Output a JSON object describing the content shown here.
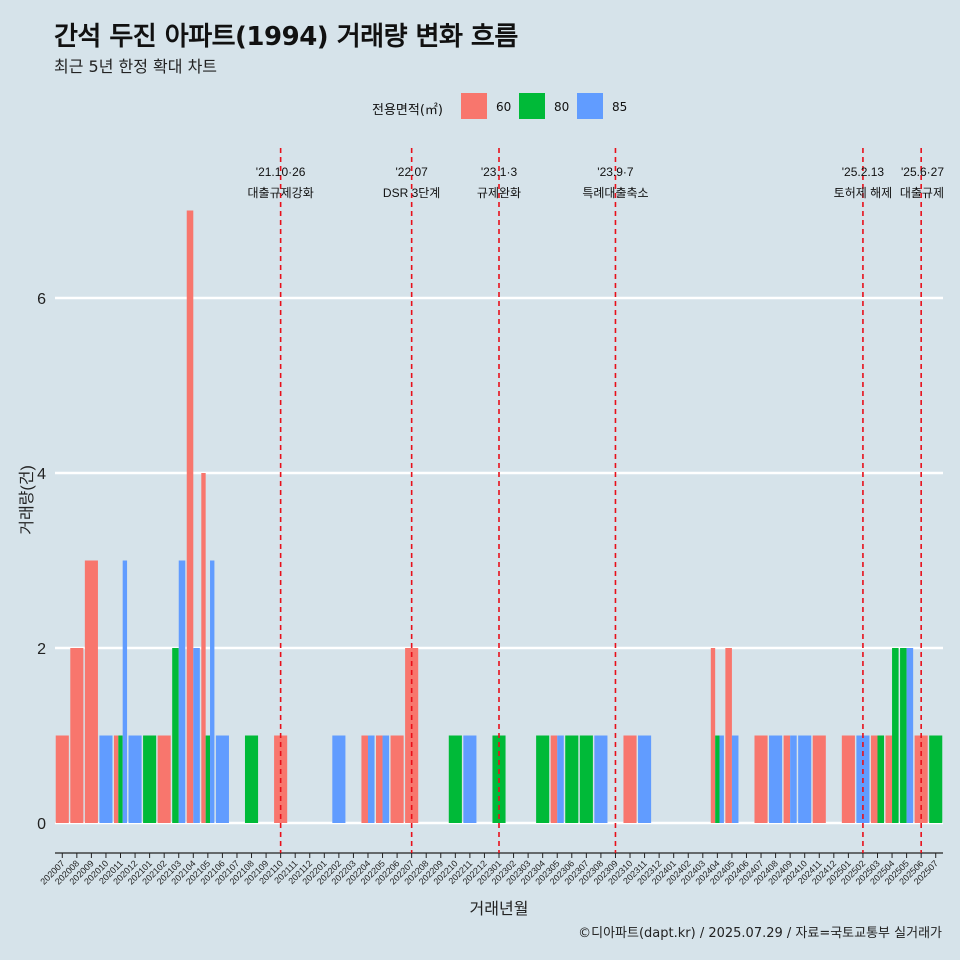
{
  "title": "간석 두진 아파트(1994) 거래량 변화 흐름",
  "subtitle": "최근 5년 한정 확대 차트",
  "caption": "©디아파트(dapt.kr) / 2025.07.29 / 자료=국토교통부 실거래가",
  "legend": {
    "title": "전용면적(㎡)",
    "items": [
      {
        "label": "60",
        "color": "#f8766d"
      },
      {
        "label": "80",
        "color": "#00ba38"
      },
      {
        "label": "85",
        "color": "#619cff"
      }
    ]
  },
  "chart_data": {
    "type": "bar",
    "title": "간석 두진 아파트(1994) 거래량 변화 흐름",
    "xlabel": "거래년월",
    "ylabel": "거래량(건)",
    "ylim": [
      0,
      7
    ],
    "yticks": [
      0,
      2,
      4,
      6
    ],
    "grid": true,
    "legend_position": "top",
    "categories": [
      "202007",
      "202008",
      "202009",
      "202010",
      "202011",
      "202012",
      "202101",
      "202102",
      "202103",
      "202104",
      "202105",
      "202106",
      "202107",
      "202108",
      "202109",
      "202110",
      "202111",
      "202112",
      "202201",
      "202202",
      "202203",
      "202204",
      "202205",
      "202206",
      "202207",
      "202208",
      "202209",
      "202210",
      "202211",
      "202212",
      "202301",
      "202302",
      "202303",
      "202304",
      "202305",
      "202306",
      "202307",
      "202308",
      "202309",
      "202310",
      "202311",
      "202312",
      "202401",
      "202402",
      "202403",
      "202404",
      "202405",
      "202406",
      "202407",
      "202408",
      "202409",
      "202410",
      "202411",
      "202412",
      "202501",
      "202502",
      "202503",
      "202504",
      "202505",
      "202506",
      "202507"
    ],
    "series": [
      {
        "name": "60",
        "color": "#f8766d",
        "values": [
          1,
          2,
          3,
          0,
          1,
          0,
          0,
          1,
          0,
          7,
          4,
          0,
          0,
          0,
          0,
          1,
          0,
          0,
          0,
          0,
          0,
          1,
          1,
          1,
          2,
          0,
          0,
          0,
          0,
          0,
          0,
          0,
          0,
          0,
          1,
          0,
          0,
          0,
          0,
          1,
          0,
          0,
          0,
          0,
          0,
          2,
          2,
          0,
          1,
          0,
          1,
          0,
          1,
          0,
          1,
          0,
          1,
          1,
          0,
          1,
          0
        ]
      },
      {
        "name": "80",
        "color": "#00ba38",
        "values": [
          0,
          0,
          0,
          0,
          1,
          0,
          1,
          0,
          2,
          0,
          1,
          0,
          0,
          1,
          0,
          0,
          0,
          0,
          0,
          0,
          0,
          0,
          0,
          0,
          0,
          0,
          0,
          1,
          0,
          0,
          1,
          0,
          0,
          1,
          0,
          1,
          1,
          0,
          0,
          0,
          0,
          0,
          0,
          0,
          0,
          1,
          0,
          0,
          0,
          0,
          0,
          0,
          0,
          0,
          0,
          0,
          1,
          2,
          2,
          0,
          1
        ]
      },
      {
        "name": "85",
        "color": "#619cff",
        "values": [
          0,
          0,
          0,
          1,
          3,
          1,
          0,
          0,
          3,
          2,
          3,
          1,
          0,
          0,
          0,
          0,
          0,
          0,
          0,
          1,
          0,
          1,
          1,
          0,
          0,
          0,
          0,
          0,
          1,
          0,
          0,
          0,
          0,
          0,
          1,
          0,
          0,
          1,
          0,
          0,
          1,
          0,
          0,
          0,
          0,
          1,
          1,
          0,
          0,
          1,
          1,
          1,
          0,
          0,
          0,
          1,
          0,
          0,
          2,
          0,
          0
        ]
      }
    ],
    "annotations": [
      {
        "x": "202110",
        "date": "'21.10·26",
        "label": "대출규제강화"
      },
      {
        "x": "202207",
        "date": "'22.07",
        "label": "DSR 3단계"
      },
      {
        "x": "202301",
        "date": "'23.1·3",
        "label": "규제완화"
      },
      {
        "x": "202309",
        "date": "'23.9·7",
        "label": "특례대출축소"
      },
      {
        "x": "202502",
        "date": "'25.2.13",
        "label": "토허제 해제"
      },
      {
        "x": "202506",
        "date": "'25.6·27",
        "label": "대출규제"
      }
    ]
  }
}
